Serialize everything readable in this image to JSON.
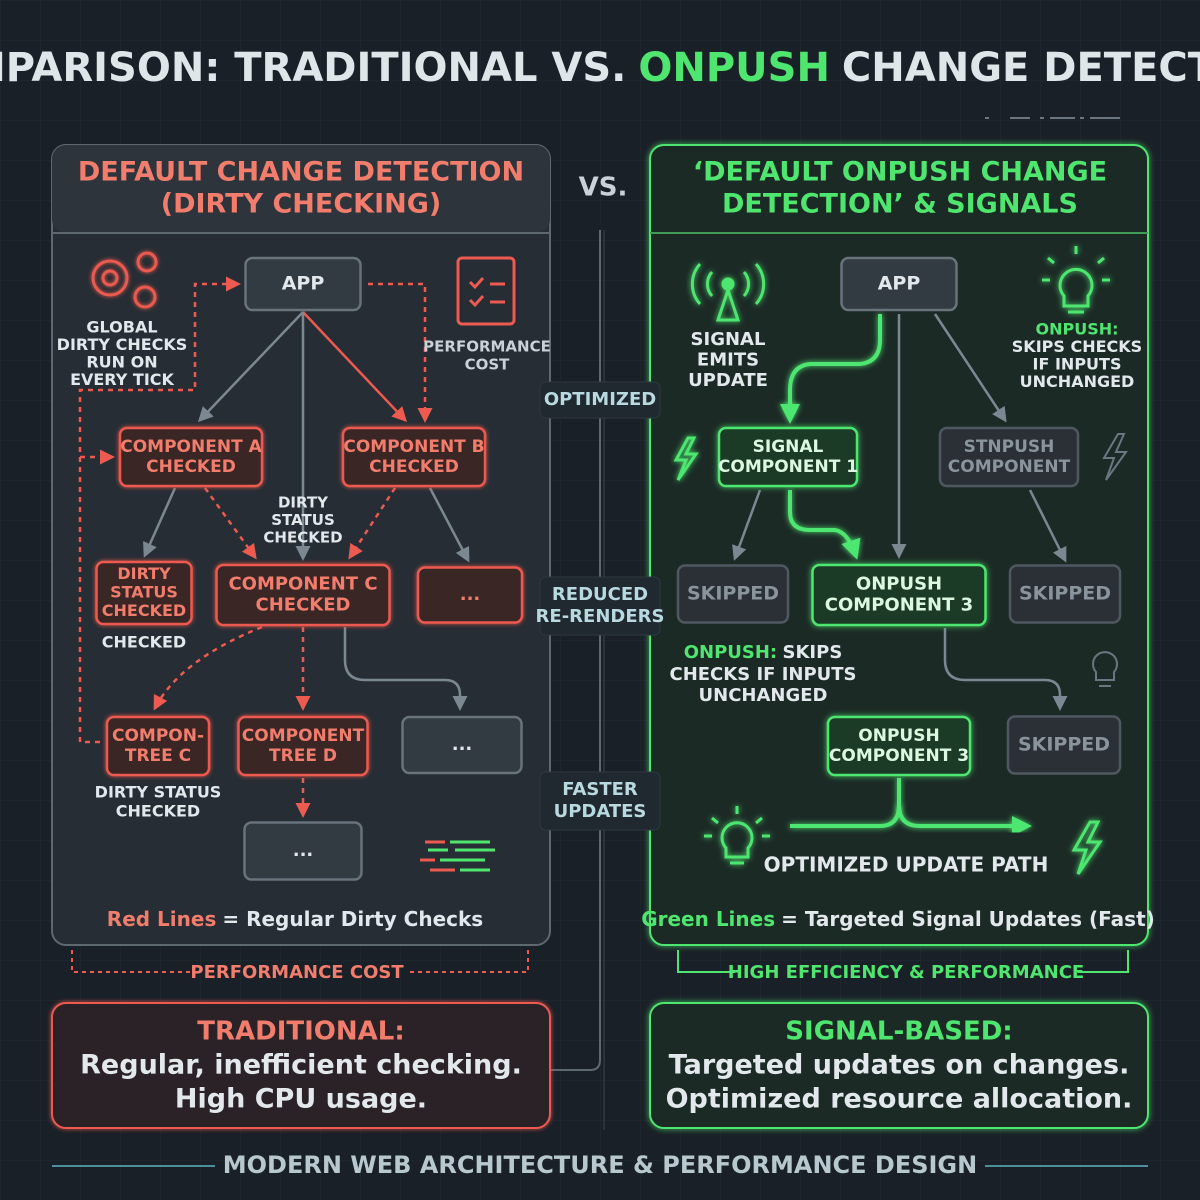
{
  "title": {
    "part1": "COMPARISON: TRADITIONAL VS.",
    "highlight": "ONPUSH",
    "part2": "CHANGE DETECTION"
  },
  "vs": "VS.",
  "left": {
    "heading": [
      "DEFAULT CHANGE DETECTION",
      "(DIRTY CHECKING)"
    ],
    "nodes": [
      {
        "lines": [
          "APP"
        ]
      },
      {
        "lines": [
          "COMPONENT A",
          "CHECKED"
        ]
      },
      {
        "lines": [
          "COMPONENT B",
          "CHECKED"
        ]
      },
      {
        "lines": [
          "DIRTY",
          "STATUS",
          "CHECKED"
        ]
      },
      {
        "lines": [
          "COMPONENT C",
          "CHECKED"
        ]
      },
      {
        "lines": [
          "..."
        ]
      },
      {
        "lines": [
          "COMPON-",
          "TREE C"
        ]
      },
      {
        "lines": [
          "COMPONENT",
          "TREE D"
        ]
      },
      {
        "lines": [
          "..."
        ]
      },
      {
        "lines": [
          "..."
        ]
      }
    ],
    "notes": [
      {
        "lines": [
          "GLOBAL",
          "DIRTY CHECKS",
          "RUN ON",
          "EVERY TICK"
        ]
      },
      {
        "lines": [
          "PERFORMANCE",
          "COST"
        ]
      },
      {
        "lines": [
          "DIRTY",
          "STATUS",
          "CHECKED"
        ]
      },
      {
        "lines": [
          "CHECKED"
        ]
      },
      {
        "lines": [
          "DIRTY STATUS",
          "CHECKED"
        ]
      }
    ],
    "legend": {
      "key": "Red Lines",
      "text": "= Regular Dirty Checks"
    },
    "footer": "PERFORMANCE COST",
    "summary": {
      "title": "TRADITIONAL:",
      "lines": [
        "Regular, inefficient checking.",
        "High CPU usage."
      ]
    }
  },
  "middle": {
    "labels": [
      {
        "lines": [
          "OPTIMIZED"
        ]
      },
      {
        "lines": [
          "REDUCED",
          "RE-RENDERS"
        ]
      },
      {
        "lines": [
          "FASTER",
          "UPDATES"
        ]
      }
    ]
  },
  "right": {
    "heading": [
      "‘DEFAULT ONPUSH CHANGE",
      "DETECTION’ & SIGNALS"
    ],
    "nodes": [
      {
        "lines": [
          "APP"
        ]
      },
      {
        "lines": [
          "SIGNAL",
          "COMPONENT 1"
        ]
      },
      {
        "lines": [
          "STNPUSH",
          "COMPONENT"
        ]
      },
      {
        "lines": [
          "SKIPPED"
        ]
      },
      {
        "lines": [
          "ONPUSH",
          "COMPONENT 3"
        ]
      },
      {
        "lines": [
          "SKIPPED"
        ]
      },
      {
        "lines": [
          "ONPUSH",
          "COMPONENT 3"
        ]
      },
      {
        "lines": [
          "SKIPPED"
        ]
      }
    ],
    "notes": [
      {
        "lines": [
          "SIGNAL",
          "EMITS",
          "UPDATE"
        ]
      },
      {
        "lines": [
          "ONPUSH:",
          "SKIPS CHECKS",
          "IF INPUTS",
          "UNCHANGED"
        ]
      },
      {
        "lead": {
          "key": "ONPUSH:",
          "text": "SKIPS"
        },
        "lines": [
          "CHECKS IF INPUTS",
          "UNCHANGED"
        ]
      },
      {
        "lines": [
          "OPTIMIZED UPDATE PATH"
        ]
      }
    ],
    "legend": {
      "key": "Green Lines",
      "text": "= Targeted Signal Updates (Fast)"
    },
    "footer": "HIGH EFFICIENCY & PERFORMANCE",
    "summary": {
      "title": "SIGNAL-BASED:",
      "lines": [
        "Targeted updates on changes.",
        "Optimized resource allocation."
      ]
    }
  },
  "bottom": "MODERN WEB ARCHITECTURE & PERFORMANCE DESIGN"
}
